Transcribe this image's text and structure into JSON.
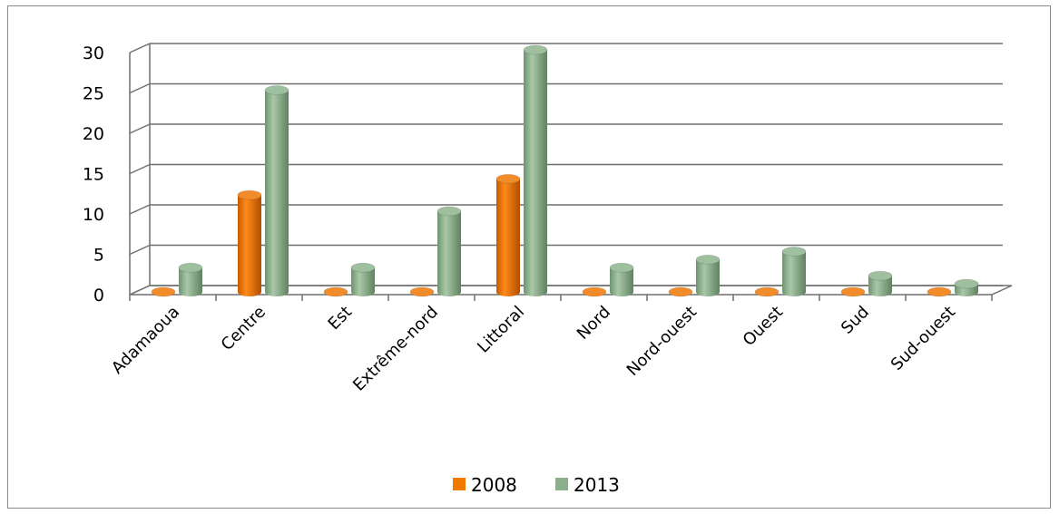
{
  "chart_data": {
    "type": "bar",
    "categories": [
      "Adamaoua",
      "Centre",
      "Est",
      "Extrême-nord",
      "Littoral",
      "Nord",
      "Nord-ouest",
      "Ouest",
      "Sud",
      "Sud-ouest"
    ],
    "series": [
      {
        "name": "2008",
        "color": "#f07a00",
        "values": [
          0,
          12,
          0,
          0,
          14,
          0,
          0,
          0,
          0,
          0
        ]
      },
      {
        "name": "2013",
        "color": "#8cb08c",
        "values": [
          3,
          25,
          3,
          10,
          30,
          3,
          4,
          5,
          2,
          1
        ]
      }
    ],
    "yticks": [
      "0",
      "5",
      "10",
      "15",
      "20",
      "25",
      "30"
    ],
    "ylim": [
      0,
      30
    ],
    "grid": true,
    "legend_position": "bottom",
    "title": "",
    "xlabel": "",
    "ylabel": ""
  }
}
